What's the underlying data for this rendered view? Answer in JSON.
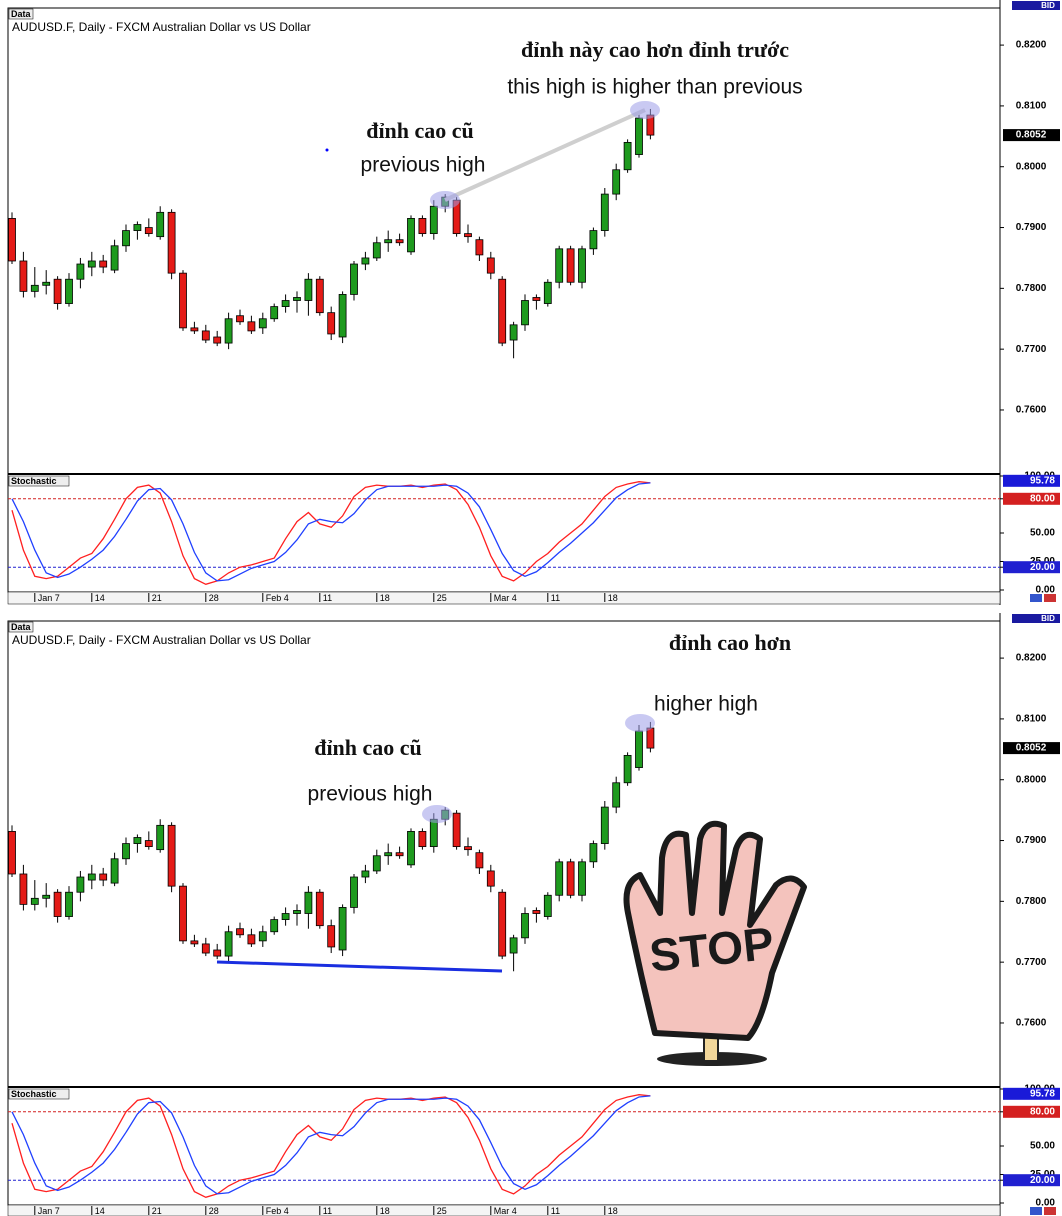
{
  "chart_data": [
    {
      "type": "candlestick",
      "header": "Data",
      "title": "AUDUSD.F, Daily - FXCM Australian Dollar vs US Dollar",
      "price_tag": "BID",
      "annotations": [
        "đỉnh này cao hơn đỉnh trước",
        "this high is higher than previous",
        "đỉnh cao cũ",
        "previous high"
      ],
      "categories": [
        null,
        null,
        "Jan 7",
        null,
        null,
        null,
        null,
        "14",
        null,
        null,
        null,
        null,
        "21",
        null,
        null,
        null,
        null,
        "28",
        null,
        null,
        null,
        null,
        "Feb 4",
        null,
        null,
        null,
        null,
        "11",
        null,
        null,
        null,
        null,
        "18",
        null,
        null,
        null,
        null,
        "25",
        null,
        null,
        null,
        null,
        "Mar 4",
        null,
        null,
        null,
        null,
        "11",
        null,
        null,
        null,
        null,
        "18",
        null,
        null,
        null,
        null
      ],
      "open": [
        0.7915,
        0.7845,
        0.7795,
        0.7805,
        0.7815,
        0.7775,
        0.7815,
        0.7835,
        0.7845,
        0.783,
        0.787,
        0.7895,
        0.79,
        0.7885,
        0.7925,
        0.7825,
        0.7735,
        0.773,
        0.772,
        0.771,
        0.7755,
        0.7745,
        0.7735,
        0.775,
        0.777,
        0.778,
        0.778,
        0.7815,
        0.776,
        0.772,
        0.779,
        0.784,
        0.785,
        0.7875,
        0.788,
        0.786,
        0.7915,
        0.789,
        0.7935,
        0.7945,
        0.789,
        0.788,
        0.785,
        0.7815,
        0.7715,
        0.774,
        0.7785,
        0.7775,
        0.781,
        0.7865,
        0.781,
        0.7865,
        0.7895,
        0.7955,
        0.7995,
        0.802,
        0.8085
      ],
      "high": [
        0.7925,
        0.786,
        0.7835,
        0.783,
        0.782,
        0.7825,
        0.785,
        0.786,
        0.7855,
        0.788,
        0.7905,
        0.791,
        0.7915,
        0.7935,
        0.793,
        0.783,
        0.7745,
        0.774,
        0.773,
        0.776,
        0.7765,
        0.7755,
        0.776,
        0.7775,
        0.779,
        0.7795,
        0.7825,
        0.782,
        0.777,
        0.7795,
        0.7845,
        0.786,
        0.7885,
        0.7895,
        0.789,
        0.792,
        0.792,
        0.7945,
        0.7955,
        0.795,
        0.7905,
        0.7885,
        0.786,
        0.782,
        0.7745,
        0.779,
        0.779,
        0.7815,
        0.787,
        0.787,
        0.787,
        0.79,
        0.7965,
        0.8005,
        0.8045,
        0.809,
        0.8095
      ],
      "low": [
        0.784,
        0.7785,
        0.7785,
        0.779,
        0.7765,
        0.777,
        0.78,
        0.782,
        0.7825,
        0.7825,
        0.786,
        0.788,
        0.7885,
        0.788,
        0.7815,
        0.773,
        0.7725,
        0.771,
        0.7705,
        0.77,
        0.774,
        0.7725,
        0.7725,
        0.7745,
        0.776,
        0.776,
        0.7755,
        0.7755,
        0.7715,
        0.771,
        0.778,
        0.783,
        0.7845,
        0.786,
        0.787,
        0.7855,
        0.7885,
        0.788,
        0.7925,
        0.7885,
        0.7875,
        0.7845,
        0.7815,
        0.7705,
        0.7685,
        0.773,
        0.7765,
        0.777,
        0.78,
        0.7805,
        0.78,
        0.7855,
        0.7885,
        0.7945,
        0.799,
        0.8015,
        0.8045
      ],
      "close": [
        0.7845,
        0.7795,
        0.7805,
        0.781,
        0.7775,
        0.7815,
        0.784,
        0.7845,
        0.7835,
        0.787,
        0.7895,
        0.7905,
        0.789,
        0.7925,
        0.7825,
        0.7735,
        0.773,
        0.7715,
        0.771,
        0.775,
        0.7745,
        0.773,
        0.775,
        0.777,
        0.778,
        0.7785,
        0.7815,
        0.776,
        0.7725,
        0.779,
        0.784,
        0.785,
        0.7875,
        0.788,
        0.7875,
        0.7915,
        0.789,
        0.7935,
        0.795,
        0.789,
        0.7885,
        0.7855,
        0.7825,
        0.771,
        0.774,
        0.778,
        0.778,
        0.781,
        0.7865,
        0.781,
        0.7865,
        0.7895,
        0.7955,
        0.7995,
        0.804,
        0.808,
        0.8052
      ],
      "up_color": "#1e9a1e",
      "down_color": "#e41b17",
      "ylim": [
        0.7498,
        0.8261
      ],
      "yticks": [
        {
          "value": 0.76,
          "label": "0.7600"
        },
        {
          "value": 0.77,
          "label": "0.7700"
        },
        {
          "value": 0.78,
          "label": "0.7800"
        },
        {
          "value": 0.79,
          "label": "0.7900"
        },
        {
          "value": 0.8,
          "label": "0.8000"
        },
        {
          "value": 0.81,
          "label": "0.8100"
        },
        {
          "value": 0.82,
          "label": "0.8200"
        }
      ],
      "last_price": {
        "value": 0.8052,
        "label": "0.8052"
      },
      "indicator": {
        "title": "Stochastic",
        "ylim": [
          0,
          100
        ],
        "yticks": [
          {
            "value": 100,
            "label": "100.00"
          },
          {
            "value": 80,
            "label": "80.00"
          },
          {
            "value": 50,
            "label": "50.00"
          },
          {
            "value": 25,
            "label": "25.00"
          },
          {
            "value": 20,
            "label": "20.00"
          },
          {
            "value": 0,
            "label": "0.00"
          }
        ],
        "levels": [
          {
            "value": 80,
            "color": "#d42020"
          },
          {
            "value": 20,
            "color": "#2020d0"
          }
        ],
        "last_value": {
          "value": 95.78,
          "label": "95.78"
        },
        "series": [
          {
            "color": "#ff2020",
            "values": [
              70,
              35,
              12,
              10,
              12,
              20,
              28,
              32,
              45,
              62,
              80,
              90,
              92,
              85,
              60,
              30,
              10,
              5,
              8,
              15,
              20,
              22,
              25,
              28,
              45,
              60,
              68,
              58,
              55,
              65,
              82,
              90,
              92,
              91,
              91,
              92,
              90,
              92,
              93,
              88,
              75,
              55,
              30,
              12,
              8,
              15,
              25,
              32,
              42,
              50,
              58,
              70,
              82,
              90,
              93,
              95,
              94
            ]
          },
          {
            "color": "#2040ff",
            "values": [
              80,
              60,
              35,
              15,
              11,
              14,
              20,
              27,
              35,
              47,
              62,
              78,
              88,
              89,
              79,
              58,
              33,
              15,
              8,
              9,
              14,
              19,
              22,
              25,
              33,
              44,
              58,
              62,
              60,
              59,
              67,
              79,
              88,
              91,
              91,
              91,
              91,
              91,
              92,
              91,
              85,
              73,
              53,
              32,
              17,
              12,
              16,
              24,
              33,
              41,
              50,
              59,
              70,
              81,
              88,
              93,
              94
            ]
          }
        ]
      }
    },
    {
      "type": "candlestick",
      "header": "Data",
      "title": "AUDUSD.F, Daily - FXCM Australian Dollar vs US Dollar",
      "price_tag": "BID",
      "annotations": [
        "đỉnh cao hơn",
        "higher high",
        "đỉnh cao cũ",
        "previous high"
      ],
      "stop_sign": "STOP",
      "categories": [
        null,
        null,
        "Jan 7",
        null,
        null,
        null,
        null,
        "14",
        null,
        null,
        null,
        null,
        "21",
        null,
        null,
        null,
        null,
        "28",
        null,
        null,
        null,
        null,
        "Feb 4",
        null,
        null,
        null,
        null,
        "11",
        null,
        null,
        null,
        null,
        "18",
        null,
        null,
        null,
        null,
        "25",
        null,
        null,
        null,
        null,
        "Mar 4",
        null,
        null,
        null,
        null,
        "11",
        null,
        null,
        null,
        null,
        "18",
        null,
        null,
        null,
        null
      ],
      "open": [
        0.7915,
        0.7845,
        0.7795,
        0.7805,
        0.7815,
        0.7775,
        0.7815,
        0.7835,
        0.7845,
        0.783,
        0.787,
        0.7895,
        0.79,
        0.7885,
        0.7925,
        0.7825,
        0.7735,
        0.773,
        0.772,
        0.771,
        0.7755,
        0.7745,
        0.7735,
        0.775,
        0.777,
        0.778,
        0.778,
        0.7815,
        0.776,
        0.772,
        0.779,
        0.784,
        0.785,
        0.7875,
        0.788,
        0.786,
        0.7915,
        0.789,
        0.7935,
        0.7945,
        0.789,
        0.788,
        0.785,
        0.7815,
        0.7715,
        0.774,
        0.7785,
        0.7775,
        0.781,
        0.7865,
        0.781,
        0.7865,
        0.7895,
        0.7955,
        0.7995,
        0.802,
        0.8085
      ],
      "high": [
        0.7925,
        0.786,
        0.7835,
        0.783,
        0.782,
        0.7825,
        0.785,
        0.786,
        0.7855,
        0.788,
        0.7905,
        0.791,
        0.7915,
        0.7935,
        0.793,
        0.783,
        0.7745,
        0.774,
        0.773,
        0.776,
        0.7765,
        0.7755,
        0.776,
        0.7775,
        0.779,
        0.7795,
        0.7825,
        0.782,
        0.777,
        0.7795,
        0.7845,
        0.786,
        0.7885,
        0.7895,
        0.789,
        0.792,
        0.792,
        0.7945,
        0.7955,
        0.795,
        0.7905,
        0.7885,
        0.786,
        0.782,
        0.7745,
        0.779,
        0.779,
        0.7815,
        0.787,
        0.787,
        0.787,
        0.79,
        0.7965,
        0.8005,
        0.8045,
        0.809,
        0.8095
      ],
      "low": [
        0.784,
        0.7785,
        0.7785,
        0.779,
        0.7765,
        0.777,
        0.78,
        0.782,
        0.7825,
        0.7825,
        0.786,
        0.788,
        0.7885,
        0.788,
        0.7815,
        0.773,
        0.7725,
        0.771,
        0.7705,
        0.77,
        0.774,
        0.7725,
        0.7725,
        0.7745,
        0.776,
        0.776,
        0.7755,
        0.7755,
        0.7715,
        0.771,
        0.778,
        0.783,
        0.7845,
        0.786,
        0.787,
        0.7855,
        0.7885,
        0.788,
        0.7925,
        0.7885,
        0.7875,
        0.7845,
        0.7815,
        0.7705,
        0.7685,
        0.773,
        0.7765,
        0.777,
        0.78,
        0.7805,
        0.78,
        0.7855,
        0.7885,
        0.7945,
        0.799,
        0.8015,
        0.8045
      ],
      "close": [
        0.7845,
        0.7795,
        0.7805,
        0.781,
        0.7775,
        0.7815,
        0.784,
        0.7845,
        0.7835,
        0.787,
        0.7895,
        0.7905,
        0.789,
        0.7925,
        0.7825,
        0.7735,
        0.773,
        0.7715,
        0.771,
        0.775,
        0.7745,
        0.773,
        0.775,
        0.777,
        0.778,
        0.7785,
        0.7815,
        0.776,
        0.7725,
        0.779,
        0.784,
        0.785,
        0.7875,
        0.788,
        0.7875,
        0.7915,
        0.789,
        0.7935,
        0.795,
        0.789,
        0.7885,
        0.7855,
        0.7825,
        0.771,
        0.774,
        0.778,
        0.778,
        0.781,
        0.7865,
        0.781,
        0.7865,
        0.7895,
        0.7955,
        0.7995,
        0.804,
        0.808,
        0.8052
      ],
      "up_color": "#1e9a1e",
      "down_color": "#e41b17",
      "ylim": [
        0.7498,
        0.8261
      ],
      "yticks": [
        {
          "value": 0.76,
          "label": "0.7600"
        },
        {
          "value": 0.77,
          "label": "0.7700"
        },
        {
          "value": 0.78,
          "label": "0.7800"
        },
        {
          "value": 0.79,
          "label": "0.7900"
        },
        {
          "value": 0.8,
          "label": "0.8000"
        },
        {
          "value": 0.81,
          "label": "0.8100"
        },
        {
          "value": 0.82,
          "label": "0.8200"
        }
      ],
      "last_price": {
        "value": 0.8052,
        "label": "0.8052"
      },
      "indicator": {
        "title": "Stochastic",
        "ylim": [
          0,
          100
        ],
        "yticks": [
          {
            "value": 100,
            "label": "100.00"
          },
          {
            "value": 80,
            "label": "80.00"
          },
          {
            "value": 50,
            "label": "50.00"
          },
          {
            "value": 25,
            "label": "25.00"
          },
          {
            "value": 20,
            "label": "20.00"
          },
          {
            "value": 0,
            "label": "0.00"
          }
        ],
        "levels": [
          {
            "value": 80,
            "color": "#d42020"
          },
          {
            "value": 20,
            "color": "#2020d0"
          }
        ],
        "last_value": {
          "value": 95.78,
          "label": "95.78"
        },
        "series": [
          {
            "color": "#ff2020",
            "values": [
              70,
              35,
              12,
              10,
              12,
              20,
              28,
              32,
              45,
              62,
              80,
              90,
              92,
              85,
              60,
              30,
              10,
              5,
              8,
              15,
              20,
              22,
              25,
              28,
              45,
              60,
              68,
              58,
              55,
              65,
              82,
              90,
              92,
              91,
              91,
              92,
              90,
              92,
              93,
              88,
              75,
              55,
              30,
              12,
              8,
              15,
              25,
              32,
              42,
              50,
              58,
              70,
              82,
              90,
              93,
              95,
              94
            ]
          },
          {
            "color": "#2040ff",
            "values": [
              80,
              60,
              35,
              15,
              11,
              14,
              20,
              27,
              35,
              47,
              62,
              78,
              88,
              89,
              79,
              58,
              33,
              15,
              8,
              9,
              14,
              19,
              22,
              25,
              33,
              44,
              58,
              62,
              60,
              59,
              67,
              79,
              88,
              91,
              91,
              91,
              91,
              91,
              92,
              91,
              85,
              73,
              53,
              32,
              17,
              12,
              16,
              24,
              33,
              41,
              50,
              59,
              70,
              81,
              88,
              93,
              94
            ]
          }
        ]
      }
    }
  ]
}
